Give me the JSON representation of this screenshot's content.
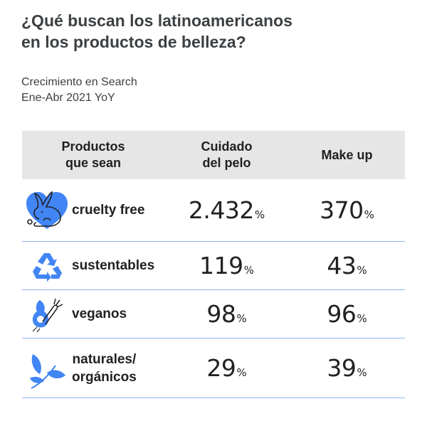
{
  "title": {
    "line1": "¿Qué buscan los latinoamericanos",
    "line2": "en los productos de belleza?"
  },
  "subtitle": {
    "line1": "Crecimiento en Search",
    "line2": "Ene-Abr 2021 YoY"
  },
  "colors": {
    "accent": "#4285f4",
    "header_bg": "#e6e6e6",
    "divider": "#8ab4f8"
  },
  "chart_data": {
    "type": "table",
    "columns": [
      "Productos\nque sean",
      "Cuidado\ndel pelo",
      "Make up"
    ],
    "rows": [
      {
        "icon": "heart-rabbit-icon",
        "label": "cruelty free",
        "cuidado_del_pelo": "2.432",
        "make_up": "370"
      },
      {
        "icon": "recycle-icon",
        "label": "sustentables",
        "cuidado_del_pelo": "119",
        "make_up": "43"
      },
      {
        "icon": "avocado-carrot-icon",
        "label": "veganos",
        "cuidado_del_pelo": "98",
        "make_up": "96"
      },
      {
        "icon": "leaf-branch-icon",
        "label": "naturales/\norgánicos",
        "cuidado_del_pelo": "29",
        "make_up": "39"
      }
    ],
    "unit": "%"
  }
}
